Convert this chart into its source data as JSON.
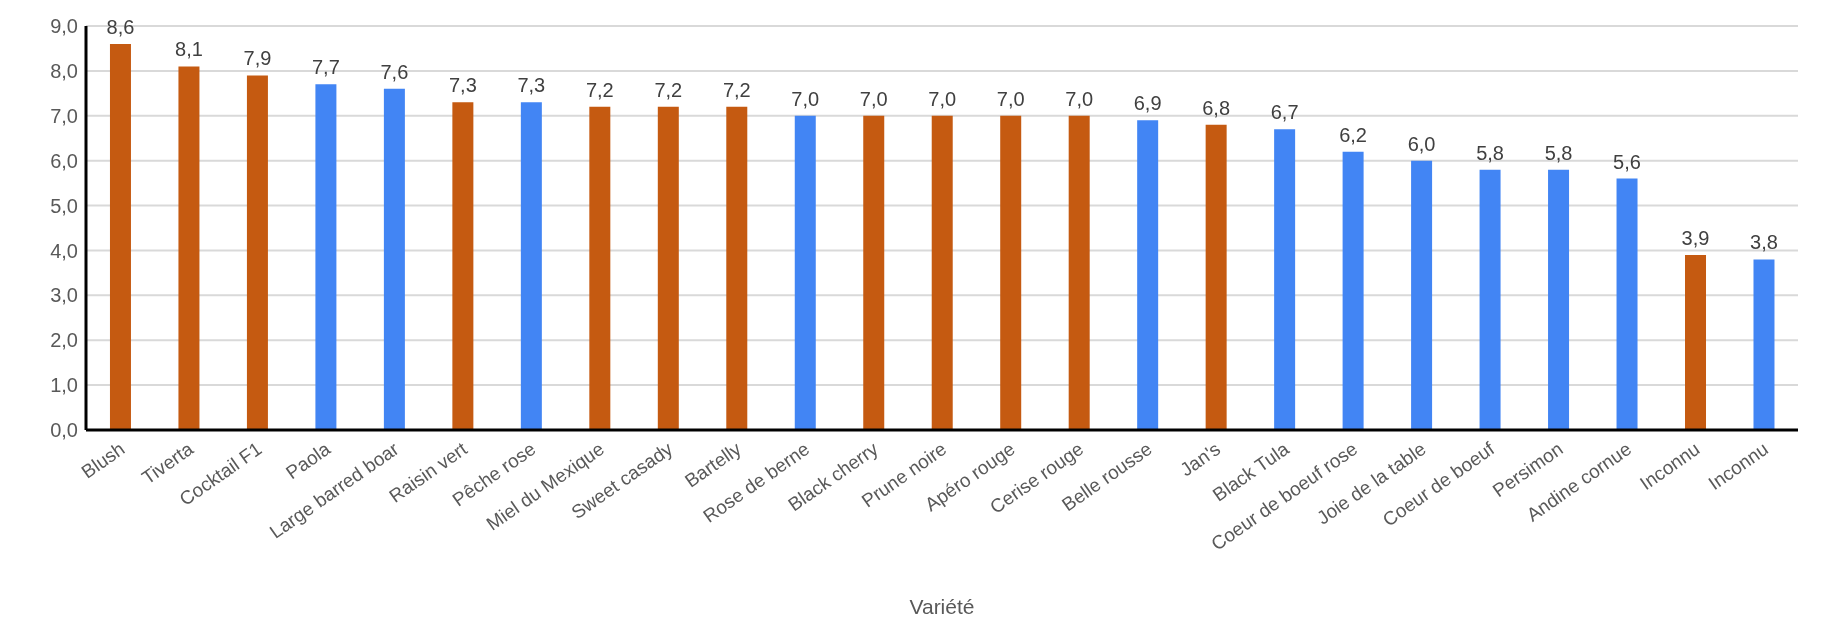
{
  "chart_data": {
    "type": "bar",
    "xlabel": "Variété",
    "categories": [
      "Blush",
      "Tiverta",
      "Cocktail F1",
      "Paola",
      "Large barred boar",
      "Raisin vert",
      "Pêche rose",
      "Miel du Mexique",
      "Sweet casady",
      "Bartelly",
      "Rose de berne",
      "Black cherry",
      "Prune noire",
      "Apéro rouge",
      "Cerise rouge",
      "Belle rousse",
      "Jan's",
      "Black Tula",
      "Coeur de boeuf rose",
      "Joie de la table",
      "Coeur de boeuf",
      "Persimon",
      "Andine cornue",
      "Inconnu",
      "Inconnu"
    ],
    "values": [
      8.6,
      8.1,
      7.9,
      7.7,
      7.6,
      7.3,
      7.3,
      7.2,
      7.2,
      7.2,
      7.0,
      7.0,
      7.0,
      7.0,
      7.0,
      6.9,
      6.8,
      6.7,
      6.2,
      6.0,
      5.8,
      5.8,
      5.6,
      3.9,
      3.8
    ],
    "value_labels": [
      "8,6",
      "8,1",
      "7,9",
      "7,7",
      "7,6",
      "7,3",
      "7,3",
      "7,2",
      "7,2",
      "7,2",
      "7,0",
      "7,0",
      "7,0",
      "7,0",
      "7,0",
      "6,9",
      "6,8",
      "6,7",
      "6,2",
      "6,0",
      "5,8",
      "5,8",
      "5,6",
      "3,9",
      "3,8"
    ],
    "colors": [
      "#c55a11",
      "#c55a11",
      "#c55a11",
      "#4285f4",
      "#4285f4",
      "#c55a11",
      "#4285f4",
      "#c55a11",
      "#c55a11",
      "#c55a11",
      "#4285f4",
      "#c55a11",
      "#c55a11",
      "#c55a11",
      "#c55a11",
      "#4285f4",
      "#c55a11",
      "#4285f4",
      "#4285f4",
      "#4285f4",
      "#4285f4",
      "#4285f4",
      "#4285f4",
      "#c55a11",
      "#4285f4"
    ],
    "ylim": [
      0,
      9
    ],
    "yticks": [
      {
        "value": 0,
        "label": "0,0"
      },
      {
        "value": 1,
        "label": "1,0"
      },
      {
        "value": 2,
        "label": "2,0"
      },
      {
        "value": 3,
        "label": "3,0"
      },
      {
        "value": 4,
        "label": "4,0"
      },
      {
        "value": 5,
        "label": "5,0"
      },
      {
        "value": 6,
        "label": "6,0"
      },
      {
        "value": 7,
        "label": "7,0"
      },
      {
        "value": 8,
        "label": "8,0"
      },
      {
        "value": 9,
        "label": "9,0"
      }
    ],
    "grid": "y"
  }
}
